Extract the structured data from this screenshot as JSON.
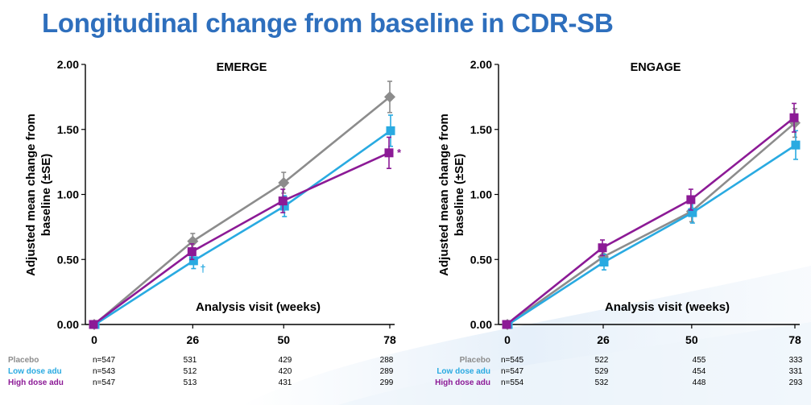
{
  "slide": {
    "title": "Longitudinal change from baseline in CDR-SB"
  },
  "colors": {
    "placebo": "#8c8c8c",
    "low": "#29aae1",
    "high": "#8c1a96",
    "title": "#2e6fbd"
  },
  "chart_data": [
    {
      "type": "line",
      "title": "EMERGE",
      "xlabel": "Analysis visit (weeks)",
      "ylabel": "Adjusted mean change from baseline (±SE)",
      "x": [
        0,
        26,
        50,
        78
      ],
      "x_tick_labels": [
        "0",
        "26",
        "50",
        "78"
      ],
      "ylim": [
        0,
        2
      ],
      "y_tick_labels": [
        "0.00",
        "0.50",
        "1.00",
        "1.50",
        "2.00"
      ],
      "series": [
        {
          "name": "Placebo",
          "key": "placebo",
          "marker": "diamond",
          "values": [
            0,
            0.64,
            1.09,
            1.75
          ],
          "se": [
            0,
            0.06,
            0.08,
            0.12
          ]
        },
        {
          "name": "Low dose adu",
          "key": "low",
          "marker": "square",
          "values": [
            0,
            0.49,
            0.91,
            1.49
          ],
          "se": [
            0,
            0.06,
            0.08,
            0.12
          ]
        },
        {
          "name": "High dose adu",
          "key": "high",
          "marker": "square",
          "values": [
            0,
            0.56,
            0.95,
            1.32
          ],
          "se": [
            0,
            0.06,
            0.09,
            0.12
          ]
        }
      ],
      "annotations": [
        {
          "text": "†",
          "series": "low",
          "x": 26
        },
        {
          "text": "*",
          "series": "high",
          "x": 78
        }
      ],
      "n_table": [
        {
          "name": "Placebo",
          "key": "placebo",
          "values": [
            "n=547",
            "531",
            "429",
            "288"
          ]
        },
        {
          "name": "Low dose adu",
          "key": "low",
          "values": [
            "n=543",
            "512",
            "420",
            "289"
          ]
        },
        {
          "name": "High dose adu",
          "key": "high",
          "values": [
            "n=547",
            "513",
            "431",
            "299"
          ]
        }
      ]
    },
    {
      "type": "line",
      "title": "ENGAGE",
      "xlabel": "Analysis visit (weeks)",
      "ylabel": "Adjusted mean change from baseline (±SE)",
      "x": [
        0,
        26,
        50,
        78
      ],
      "x_tick_labels": [
        "0",
        "26",
        "50",
        "78"
      ],
      "ylim": [
        0,
        2
      ],
      "y_tick_labels": [
        "0.00",
        "0.50",
        "1.00",
        "1.50",
        "2.00"
      ],
      "series": [
        {
          "name": "Placebo",
          "key": "placebo",
          "marker": "diamond",
          "values": [
            0,
            0.52,
            0.87,
            1.55
          ],
          "se": [
            0,
            0.06,
            0.08,
            0.11
          ]
        },
        {
          "name": "Low dose adu",
          "key": "low",
          "marker": "square",
          "values": [
            0,
            0.48,
            0.86,
            1.38
          ],
          "se": [
            0,
            0.06,
            0.08,
            0.11
          ]
        },
        {
          "name": "High dose adu",
          "key": "high",
          "marker": "square",
          "values": [
            0,
            0.59,
            0.96,
            1.59
          ],
          "se": [
            0,
            0.06,
            0.08,
            0.11
          ]
        }
      ],
      "annotations": [],
      "n_table": [
        {
          "name": "Placebo",
          "key": "placebo",
          "values": [
            "n=545",
            "522",
            "455",
            "333"
          ]
        },
        {
          "name": "Low dose adu",
          "key": "low",
          "values": [
            "n=547",
            "529",
            "454",
            "331"
          ]
        },
        {
          "name": "High dose adu",
          "key": "high",
          "values": [
            "n=554",
            "532",
            "448",
            "293"
          ]
        }
      ]
    }
  ]
}
